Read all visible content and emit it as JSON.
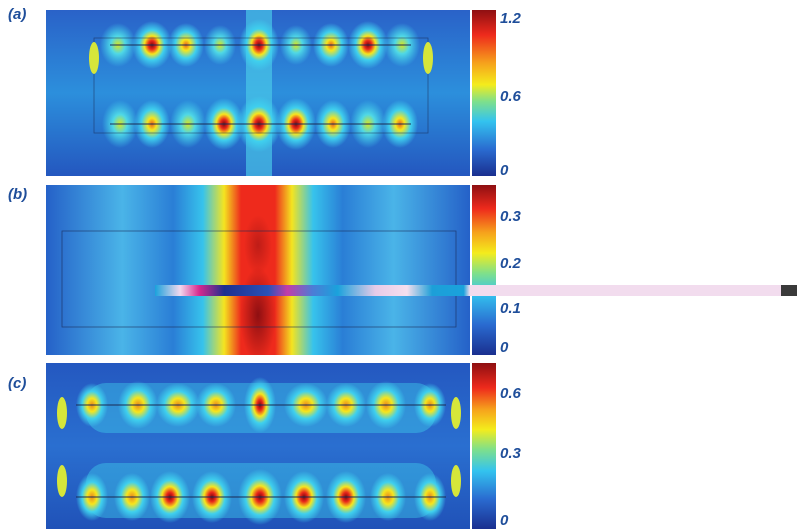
{
  "panels": [
    {
      "label": "(a)",
      "colorbar_ticks": [
        "1.2",
        "0.6",
        "0"
      ]
    },
    {
      "label": "(b)",
      "colorbar_ticks": [
        "0.3",
        "0.2",
        "0.1",
        "0"
      ]
    },
    {
      "label": "(c)",
      "colorbar_ticks": [
        "0.6",
        "0.3",
        "0"
      ]
    }
  ],
  "colors": {
    "low": "#1a2f8f",
    "mid_low": "#33c3ef",
    "mid": "#f4ec1c",
    "high": "#ee2a1c",
    "max": "#8e0f12",
    "label": "#1f4e9a"
  }
}
